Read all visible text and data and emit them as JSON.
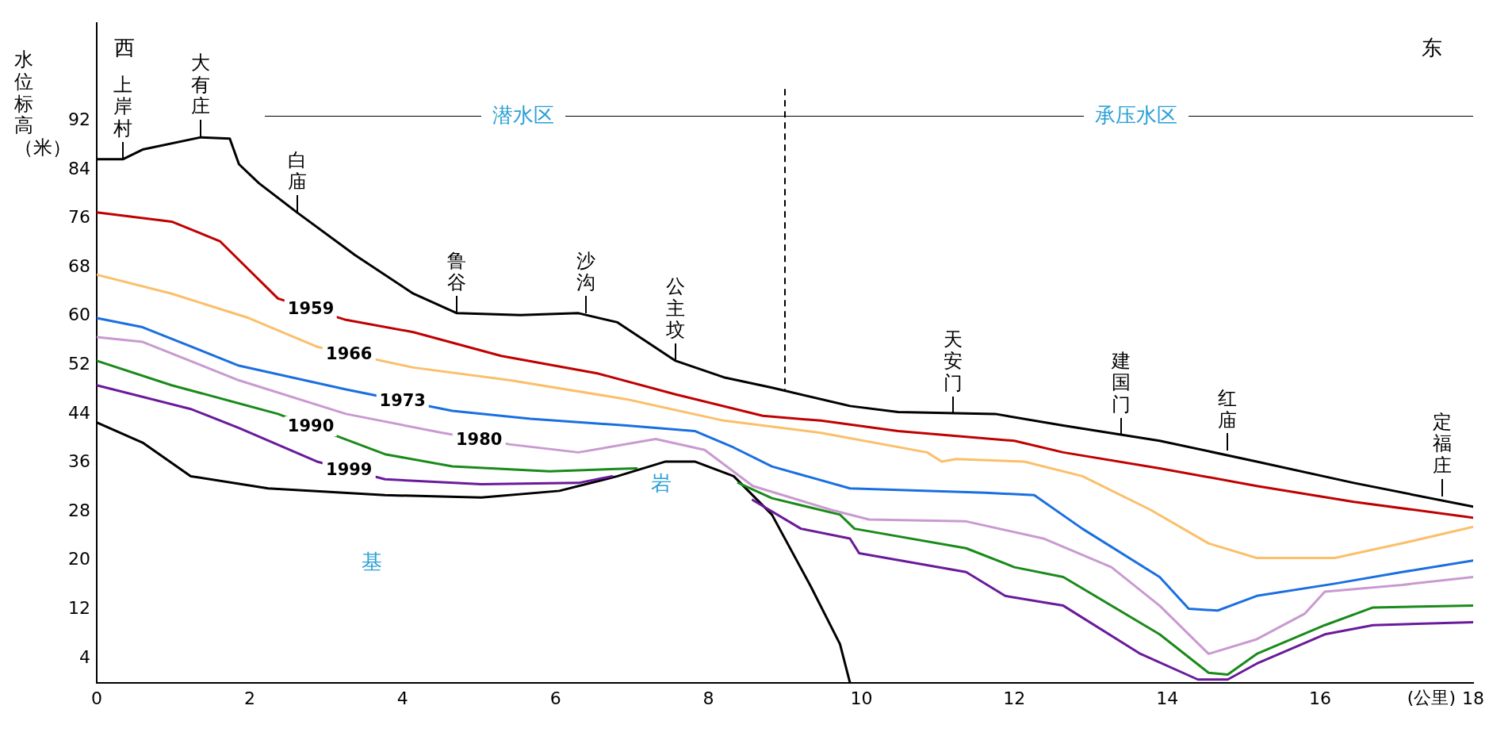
{
  "chart_data": {
    "type": "line",
    "xlabel": "(公里)",
    "ylabel": "水位标高（米）",
    "xlim": [
      0,
      18
    ],
    "xticks": [
      0,
      2,
      4,
      6,
      8,
      10,
      12,
      14,
      16,
      18
    ],
    "ylim": [
      0,
      108
    ],
    "yticks": [
      4,
      12,
      20,
      28,
      36,
      44,
      52,
      60,
      68,
      76,
      84,
      92
    ],
    "grid": false,
    "legend": false,
    "marker": "none",
    "line_style": "solid",
    "series": [
      {
        "color": "#000000",
        "x": [
          0,
          0.34,
          0.6,
          1.36,
          1.74,
          1.86,
          2.12,
          2.62,
          3.38,
          4.14,
          4.71,
          5.54,
          6.3,
          6.81,
          7.57,
          8.2,
          8.83,
          9.85,
          10.48,
          11.75,
          12.64,
          13.9,
          15.17,
          16.44,
          18
        ],
        "values": [
          85.7,
          85.7,
          87.3,
          89.3,
          89.1,
          84.9,
          81.8,
          77,
          70,
          63.7,
          60.5,
          60.2,
          60.5,
          59,
          52.7,
          50,
          48.3,
          45.3,
          44.3,
          44,
          42.1,
          39.6,
          36.2,
          32.7,
          28.8
        ]
      },
      {
        "name": "1959",
        "color": "#c00000",
        "x": [
          0,
          0.98,
          1.61,
          2.37,
          3.26,
          4.14,
          5.29,
          6.56,
          7.57,
          8.71,
          9.47,
          10.48,
          12,
          12.64,
          13.9,
          15.17,
          16.44,
          18
        ],
        "values": [
          77,
          75.5,
          72.3,
          62.9,
          59.4,
          57.4,
          53.5,
          50.6,
          47.2,
          43.7,
          42.9,
          41.2,
          39.6,
          37.7,
          35.1,
          32.2,
          29.6,
          27
        ]
      },
      {
        "name": "1966",
        "color": "#fbbf6a",
        "x": [
          0,
          0.98,
          1.99,
          2.88,
          4.14,
          5.41,
          6.93,
          8.2,
          9.47,
          10.86,
          11.05,
          11.24,
          12.13,
          12.89,
          13.78,
          14.54,
          15.17,
          16.19,
          17.07,
          18
        ],
        "values": [
          66.8,
          63.7,
          59.7,
          55,
          51.6,
          49.5,
          46.4,
          42.9,
          40.9,
          37.7,
          36.2,
          36.6,
          36.2,
          33.8,
          28.3,
          22.8,
          20.4,
          20.4,
          22.8,
          25.5
        ]
      },
      {
        "name": "1973",
        "color": "#1a6fe0",
        "x": [
          0,
          0.6,
          1.86,
          3.26,
          4.65,
          5.67,
          6.93,
          7.82,
          8.33,
          8.83,
          9.85,
          11.62,
          12.26,
          12.89,
          13.9,
          14.28,
          14.66,
          15.17,
          16.19,
          17.07,
          18
        ],
        "values": [
          59.7,
          58.2,
          51.9,
          48,
          44.5,
          43.2,
          42.1,
          41.2,
          38.5,
          35.4,
          31.8,
          31.1,
          30.7,
          25.2,
          17.3,
          12.1,
          11.8,
          14.2,
          16.2,
          18.1,
          20
        ]
      },
      {
        "name": "1980",
        "color": "#c99ad0",
        "x": [
          0,
          0.6,
          1.86,
          3.26,
          4.52,
          5.41,
          6.3,
          7.31,
          7.95,
          8.58,
          9.6,
          10.1,
          11.37,
          12.38,
          13.27,
          13.9,
          14.54,
          15.17,
          15.8,
          16.06,
          17.07,
          18
        ],
        "values": [
          56.6,
          55.8,
          49.5,
          44,
          40.9,
          39,
          37.7,
          39.9,
          38.1,
          32.2,
          28.3,
          26.7,
          26.4,
          23.6,
          18.9,
          12.6,
          4.7,
          7.1,
          11.3,
          14.9,
          16,
          17.3
        ]
      },
      {
        "name": "1990",
        "color": "#1a8a1a",
        "x": [
          0,
          0.98,
          2.37,
          3.77,
          4.65,
          5.92,
          7.06,
          7.7,
          8.39,
          8.83,
          9.72,
          9.91,
          11.37,
          12,
          12.64,
          13.9,
          14.54,
          14.79,
          15.17,
          16.06,
          16.69,
          18
        ],
        "values": [
          52.7,
          48.7,
          44,
          37.4,
          35.4,
          34.6,
          35.1,
          null,
          32.7,
          30.2,
          27.5,
          25.2,
          22,
          18.9,
          17.3,
          7.9,
          1.6,
          1.3,
          4.7,
          9.4,
          12.3,
          12.6
        ]
      },
      {
        "name": "1999",
        "color": "#6a1a9a",
        "x": [
          0,
          1.23,
          1.86,
          2.88,
          3.77,
          5.03,
          6.3,
          6.74,
          7.7,
          8.58,
          9.21,
          9.85,
          9.97,
          11.37,
          11.88,
          12.64,
          13.65,
          14.4,
          14.79,
          15.17,
          16.06,
          16.69,
          18
        ],
        "values": [
          48.7,
          44.8,
          41.7,
          36.2,
          33.3,
          32.5,
          32.7,
          33.8,
          null,
          29.9,
          25.2,
          23.6,
          21.2,
          18.1,
          14.2,
          12.6,
          4.7,
          0.5,
          0.5,
          3.1,
          7.9,
          9.4,
          9.9
        ]
      },
      {
        "color": "#000000",
        "x": [
          0,
          0.6,
          1.23,
          2.24,
          3.77,
          5.03,
          6.05,
          6.81,
          7.44,
          7.82,
          8.33,
          8.83,
          9.34,
          9.72,
          9.85
        ],
        "values": [
          42.6,
          39.3,
          33.8,
          31.8,
          30.7,
          30.3,
          31.4,
          33.8,
          36.2,
          36.2,
          33.8,
          27.5,
          15.7,
          6.3,
          0
        ]
      }
    ],
    "ref_lines": [
      {
        "axis": "x",
        "value": 9,
        "color": "#000000",
        "line_style": "dashed"
      }
    ],
    "annotations": [
      "西",
      "东",
      "基",
      "岩",
      "潜水区",
      "承压水区",
      {
        "text": "上岸村",
        "x": 0.34,
        "y": 85.7
      },
      {
        "text": "大有庄",
        "x": 1.36,
        "y": 89.3
      },
      {
        "text": "白庙",
        "x": 2.62,
        "y": 77
      },
      {
        "text": "鲁谷",
        "x": 4.71,
        "y": 60.5
      },
      {
        "text": "沙沟",
        "x": 6.4,
        "y": 60.5
      },
      {
        "text": "公主坟",
        "x": 7.57,
        "y": 52.7
      },
      {
        "text": "天安门",
        "x": 11.2,
        "y": 44
      },
      {
        "text": "建国门",
        "x": 13.4,
        "y": 40.5
      },
      {
        "text": "红庙",
        "x": 14.79,
        "y": 38
      },
      {
        "text": "定福庄",
        "x": 17.6,
        "y": 30.5
      }
    ]
  }
}
